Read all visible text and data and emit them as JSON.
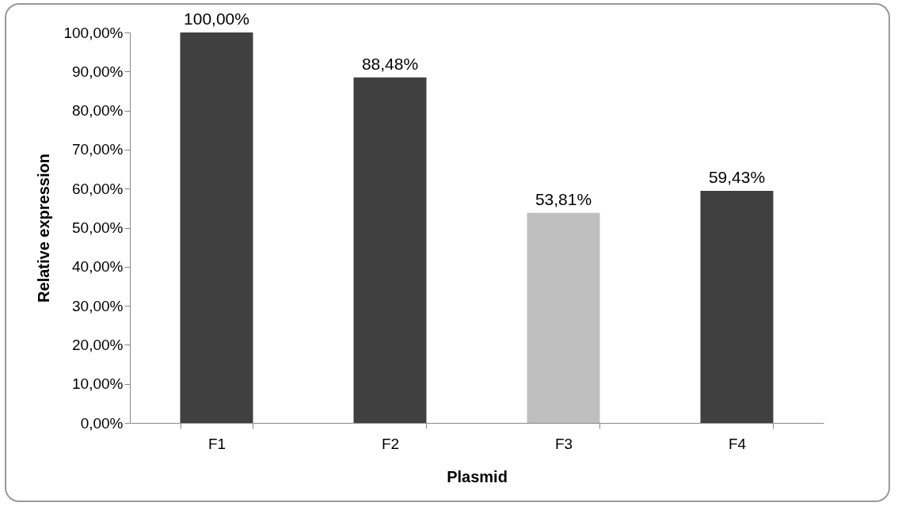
{
  "chart_data": {
    "type": "bar",
    "xlabel": "Plasmid",
    "ylabel": "Relative expression",
    "categories": [
      "F1",
      "F2",
      "F3",
      "F4"
    ],
    "values": [
      100,
      88.48,
      53.81,
      59.43
    ],
    "colors": [
      "#404040",
      "#404040",
      "#bfbfbf",
      "#404040"
    ],
    "value_labels": [
      "100,00%",
      "88,48%",
      "53,81%",
      "59,43%"
    ],
    "ylim": [
      0,
      100
    ],
    "yticks": [
      {
        "value": 0,
        "label": "0,00%"
      },
      {
        "value": 10,
        "label": "10,00%"
      },
      {
        "value": 20,
        "label": "20,00%"
      },
      {
        "value": 30,
        "label": "30,00%"
      },
      {
        "value": 40,
        "label": "40,00%"
      },
      {
        "value": 50,
        "label": "50,00%"
      },
      {
        "value": 60,
        "label": "60,00%"
      },
      {
        "value": 70,
        "label": "70,00%"
      },
      {
        "value": 80,
        "label": "80,00%"
      },
      {
        "value": 90,
        "label": "90,00%"
      },
      {
        "value": 100,
        "label": "100,00%"
      }
    ],
    "grid": false,
    "legend": false
  }
}
